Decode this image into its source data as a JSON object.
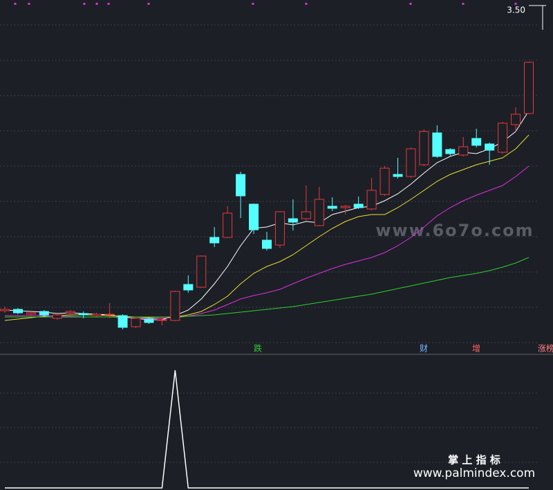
{
  "chart_data": {
    "type": "candlestick",
    "up_color": "#e83a3a",
    "down_color": "#54ffff",
    "background": "#1c1f26",
    "ylim": [
      2.54,
      3.53
    ],
    "yticks": [
      {
        "value": 3.5,
        "label": "3.50"
      }
    ],
    "open": [
      2.632,
      2.636,
      2.622,
      2.63,
      2.61,
      2.626,
      2.624,
      2.618,
      2.622,
      2.618,
      2.586,
      2.608,
      2.604,
      2.604,
      2.708,
      2.7,
      2.844,
      2.844,
      3.026,
      2.94,
      2.836,
      2.822,
      2.898,
      2.898,
      2.878,
      2.934,
      2.93,
      2.94,
      2.926,
      2.968,
      3.026,
      3.02,
      3.054,
      3.146,
      3.098,
      3.082,
      3.13,
      3.114,
      3.09,
      3.17,
      3.202
    ],
    "high": [
      2.644,
      2.64,
      2.63,
      2.634,
      2.624,
      2.634,
      2.63,
      2.626,
      2.654,
      2.622,
      2.614,
      2.612,
      2.616,
      2.69,
      2.734,
      2.792,
      2.874,
      2.934,
      3.034,
      2.942,
      2.86,
      2.92,
      2.954,
      2.994,
      2.99,
      2.96,
      2.938,
      2.962,
      3.016,
      3.05,
      3.074,
      3.104,
      3.156,
      3.168,
      3.102,
      3.134,
      3.158,
      3.118,
      3.178,
      3.22,
      3.352
    ],
    "low": [
      2.626,
      2.622,
      2.618,
      2.614,
      2.606,
      2.62,
      2.61,
      2.614,
      2.61,
      2.578,
      2.582,
      2.594,
      2.59,
      2.602,
      2.684,
      2.698,
      2.816,
      2.842,
      2.9,
      2.854,
      2.806,
      2.814,
      2.864,
      2.894,
      2.876,
      2.92,
      2.91,
      2.926,
      2.922,
      2.964,
      3.014,
      3.016,
      3.05,
      3.074,
      3.08,
      3.078,
      3.104,
      3.054,
      3.086,
      3.15,
      3.2
    ],
    "close": [
      2.636,
      2.626,
      2.626,
      2.62,
      2.62,
      2.63,
      2.62,
      2.622,
      2.622,
      2.584,
      2.61,
      2.598,
      2.606,
      2.688,
      2.692,
      2.79,
      2.828,
      2.914,
      2.964,
      2.866,
      2.812,
      2.918,
      2.888,
      2.918,
      2.954,
      2.928,
      2.934,
      2.93,
      2.98,
      3.044,
      3.02,
      3.1,
      3.15,
      3.078,
      3.086,
      3.106,
      3.11,
      3.096,
      3.174,
      3.2,
      3.35
    ],
    "series": [
      {
        "color": "#ffffff",
        "values": [
          2.634,
          2.632,
          2.63,
          2.628,
          2.624,
          2.626,
          2.624,
          2.622,
          2.62,
          2.614,
          2.61,
          2.606,
          2.606,
          2.618,
          2.634,
          2.666,
          2.71,
          2.76,
          2.82,
          2.87,
          2.874,
          2.886,
          2.88,
          2.89,
          2.886,
          2.91,
          2.92,
          2.93,
          2.934,
          2.95,
          2.97,
          2.998,
          3.03,
          3.06,
          3.078,
          3.09,
          3.086,
          3.1,
          3.12,
          3.15,
          3.21
        ]
      },
      {
        "color": "#f0e030",
        "values": [
          2.604,
          2.608,
          2.612,
          2.616,
          2.618,
          2.62,
          2.62,
          2.62,
          2.618,
          2.616,
          2.614,
          2.612,
          2.61,
          2.614,
          2.62,
          2.63,
          2.65,
          2.674,
          2.71,
          2.74,
          2.76,
          2.774,
          2.794,
          2.82,
          2.846,
          2.87,
          2.89,
          2.904,
          2.91,
          2.91,
          2.93,
          2.954,
          2.98,
          3.006,
          3.026,
          3.04,
          3.054,
          3.064,
          3.074,
          3.1,
          3.14
        ]
      },
      {
        "color": "#e030e0",
        "values": [
          2.618,
          2.618,
          2.618,
          2.618,
          2.616,
          2.616,
          2.614,
          2.614,
          2.614,
          2.612,
          2.61,
          2.61,
          2.61,
          2.612,
          2.616,
          2.624,
          2.634,
          2.65,
          2.666,
          2.676,
          2.684,
          2.694,
          2.71,
          2.726,
          2.74,
          2.754,
          2.766,
          2.776,
          2.786,
          2.8,
          2.82,
          2.844,
          2.874,
          2.906,
          2.93,
          2.95,
          2.966,
          2.98,
          2.994,
          3.02,
          3.05
        ]
      },
      {
        "color": "#30d030",
        "values": [
          2.614,
          2.614,
          2.614,
          2.614,
          2.614,
          2.614,
          2.614,
          2.614,
          2.614,
          2.614,
          2.614,
          2.614,
          2.614,
          2.614,
          2.616,
          2.618,
          2.62,
          2.624,
          2.628,
          2.632,
          2.636,
          2.64,
          2.644,
          2.65,
          2.656,
          2.662,
          2.668,
          2.674,
          2.68,
          2.688,
          2.696,
          2.704,
          2.712,
          2.72,
          2.728,
          2.734,
          2.74,
          2.748,
          2.758,
          2.77,
          2.786
        ]
      }
    ],
    "signals": [
      "跌",
      "财",
      "增",
      "涨榜"
    ],
    "indicator": {
      "color": "#ffffff",
      "ylim": [
        0,
        1.1
      ],
      "values": [
        0,
        0,
        0,
        0,
        0,
        0,
        0,
        0,
        0,
        0,
        0,
        0,
        0,
        1,
        0,
        0,
        0,
        0,
        0,
        0,
        0,
        0,
        0,
        0,
        0,
        0,
        0,
        0,
        0,
        0,
        0,
        0,
        0,
        0,
        0,
        0,
        0,
        0,
        0,
        0,
        0
      ]
    },
    "watermarks": [
      "www.6o7o.com",
      "掌 上 指 标",
      "www.palmindex.com"
    ]
  }
}
